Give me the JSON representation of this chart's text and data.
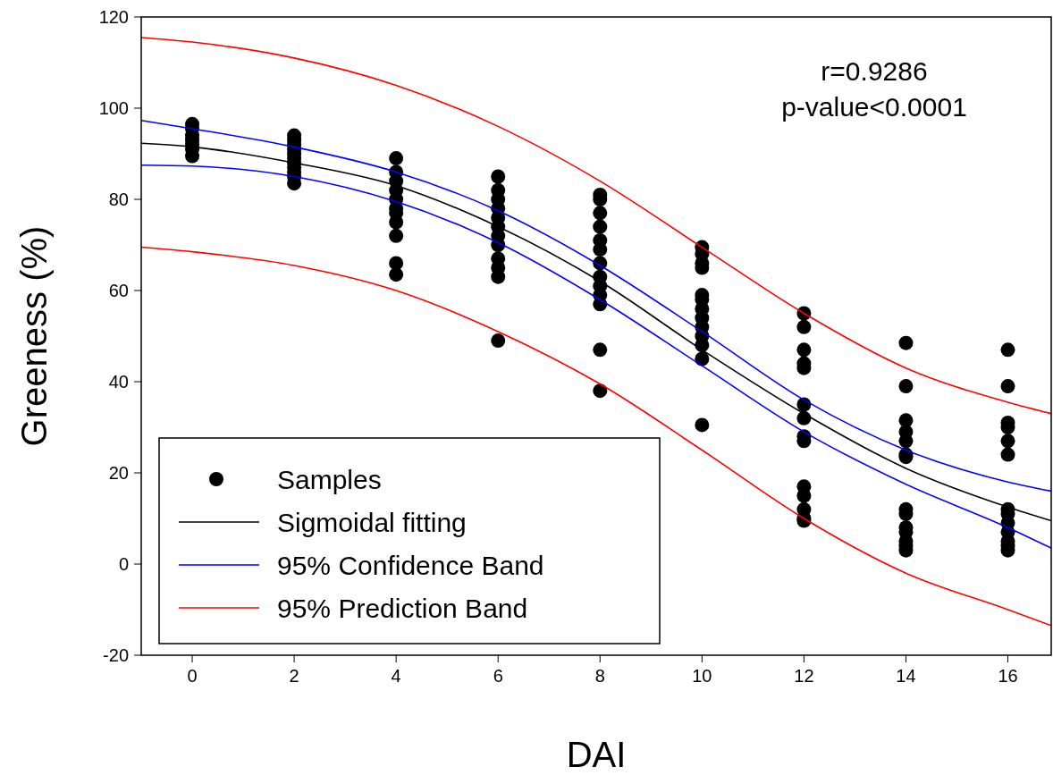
{
  "chart_data": {
    "type": "line",
    "xlabel": "DAI",
    "ylabel": "Greeness (%)",
    "xlim": [
      -1,
      16.85
    ],
    "ylim": [
      -20,
      120
    ],
    "xticks": [
      0,
      2,
      4,
      6,
      8,
      10,
      12,
      14,
      16
    ],
    "yticks": [
      -20,
      0,
      20,
      40,
      60,
      80,
      100,
      120
    ],
    "grid": false,
    "legend": "bottom left",
    "line_style": "solid",
    "annotations": [
      "r=0.9286",
      "p-value<0.0001"
    ],
    "series": [
      {
        "name": "Samples",
        "type": "scatter",
        "marker": "circle",
        "color": "#000000",
        "x": [
          0,
          0,
          0,
          0,
          0,
          0,
          0,
          2,
          2,
          2,
          2,
          2,
          2,
          2,
          2,
          2,
          2,
          2,
          4,
          4,
          4,
          4,
          4,
          4,
          4,
          4,
          4,
          4,
          4,
          6,
          6,
          6,
          6,
          6,
          6,
          6,
          6,
          6,
          6,
          6,
          6,
          8,
          8,
          8,
          8,
          8,
          8,
          8,
          8,
          8,
          8,
          8,
          8,
          8,
          10,
          10,
          10,
          10,
          10,
          10,
          10,
          10,
          10,
          10,
          10,
          10,
          10,
          12,
          12,
          12,
          12,
          12,
          12,
          12,
          12,
          12,
          12,
          12,
          12,
          12,
          12,
          14,
          14,
          14,
          14,
          14,
          14,
          14,
          14,
          14,
          14,
          14,
          14,
          14,
          14,
          16,
          16,
          16,
          16,
          16,
          16,
          16,
          16,
          16,
          16,
          16,
          16,
          16
        ],
        "values": [
          96.5,
          95.5,
          94,
          93,
          92,
          91,
          89.5,
          94,
          93,
          92,
          91,
          90,
          89,
          88,
          87,
          86,
          85,
          83.5,
          89,
          86,
          84,
          82,
          80,
          78,
          77,
          75,
          72,
          66,
          63.5,
          85,
          82,
          80,
          78,
          76,
          74,
          72,
          70,
          67,
          65,
          63,
          49,
          81,
          80,
          77,
          74,
          71,
          69,
          66,
          63,
          61,
          59,
          57,
          47,
          38,
          69.5,
          68,
          66,
          65,
          59,
          58,
          56,
          54,
          52,
          50,
          48,
          45,
          30.5,
          55,
          52,
          47,
          44,
          43,
          35,
          32,
          28,
          27,
          17,
          15,
          12,
          10,
          9.5,
          48.5,
          39,
          31.5,
          29,
          27,
          24,
          23.5,
          12,
          11,
          8,
          7,
          5,
          4,
          3,
          47,
          39,
          31,
          30,
          27,
          24,
          12,
          11,
          9,
          7,
          5,
          4,
          3
        ]
      },
      {
        "name": "Sigmoidal fitting",
        "color": "#000000",
        "x": [
          -1,
          0,
          2,
          4,
          6,
          8,
          10,
          12,
          14,
          16,
          16.85
        ],
        "values": [
          92.3,
          91.5,
          88,
          83,
          74,
          62,
          47,
          33,
          21,
          12.5,
          9.5
        ]
      },
      {
        "name": "95% Confidence Band",
        "color": "#0000ff",
        "x": [
          -1,
          0,
          2,
          4,
          6,
          8,
          10,
          12,
          14,
          16,
          16.85
        ],
        "values": [
          97.3,
          95.5,
          91.5,
          86,
          77.5,
          65.5,
          51,
          36,
          25,
          18,
          16
        ]
      },
      {
        "color": "#0000ff",
        "x": [
          -1,
          0,
          2,
          4,
          6,
          8,
          10,
          12,
          14,
          16,
          16.85
        ],
        "values": [
          87.5,
          87.3,
          85,
          79.5,
          70.5,
          58,
          43.5,
          29,
          17.5,
          8,
          3.5
        ]
      },
      {
        "name": "95% Prediction Band",
        "color": "#ff0000",
        "x": [
          -1,
          0,
          2,
          4,
          6,
          8,
          10,
          12,
          14,
          16,
          16.85
        ],
        "values": [
          115.5,
          114.5,
          111,
          105,
          96,
          84,
          69.5,
          55,
          43,
          35.5,
          33
        ]
      },
      {
        "color": "#ff0000",
        "x": [
          -1,
          0,
          2,
          4,
          6,
          8,
          10,
          12,
          14,
          16,
          16.85
        ],
        "values": [
          69.5,
          68.5,
          65.5,
          60,
          51,
          39.5,
          25,
          10,
          -2,
          -10,
          -13.5
        ]
      }
    ]
  }
}
